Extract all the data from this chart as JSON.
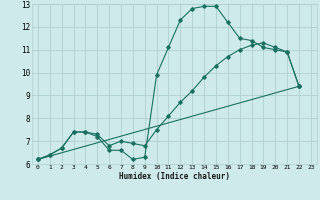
{
  "title": "",
  "xlabel": "Humidex (Indice chaleur)",
  "bg_color": "#ceeaea",
  "grid_color": "#b0d0d0",
  "line_color": "#1a7060",
  "xlim": [
    -0.5,
    23.5
  ],
  "ylim": [
    6,
    13
  ],
  "xticks": [
    0,
    1,
    2,
    3,
    4,
    5,
    6,
    7,
    8,
    9,
    10,
    11,
    12,
    13,
    14,
    15,
    16,
    17,
    18,
    19,
    20,
    21,
    22,
    23
  ],
  "yticks": [
    6,
    7,
    8,
    9,
    10,
    11,
    12,
    13
  ],
  "series": [
    {
      "x": [
        0,
        1,
        2,
        3,
        4,
        5,
        6,
        7,
        8,
        9,
        10,
        11,
        12,
        13,
        14,
        15,
        16,
        17,
        18,
        19,
        20,
        21,
        22
      ],
      "y": [
        6.2,
        6.4,
        6.7,
        7.4,
        7.4,
        7.2,
        6.6,
        6.6,
        6.2,
        6.3,
        9.9,
        11.1,
        12.3,
        12.8,
        12.9,
        12.9,
        12.2,
        11.5,
        11.4,
        11.1,
        11.0,
        10.9,
        9.4
      ]
    },
    {
      "x": [
        0,
        1,
        2,
        3,
        4,
        5,
        6,
        7,
        8,
        9,
        10,
        11,
        12,
        13,
        14,
        15,
        16,
        17,
        18,
        19,
        20,
        21,
        22
      ],
      "y": [
        6.2,
        6.4,
        6.7,
        7.4,
        7.4,
        7.3,
        6.8,
        7.0,
        6.9,
        6.8,
        7.5,
        8.1,
        8.7,
        9.2,
        9.8,
        10.3,
        10.7,
        11.0,
        11.2,
        11.3,
        11.1,
        10.9,
        9.4
      ]
    },
    {
      "x": [
        0,
        22
      ],
      "y": [
        6.2,
        9.4
      ]
    }
  ]
}
